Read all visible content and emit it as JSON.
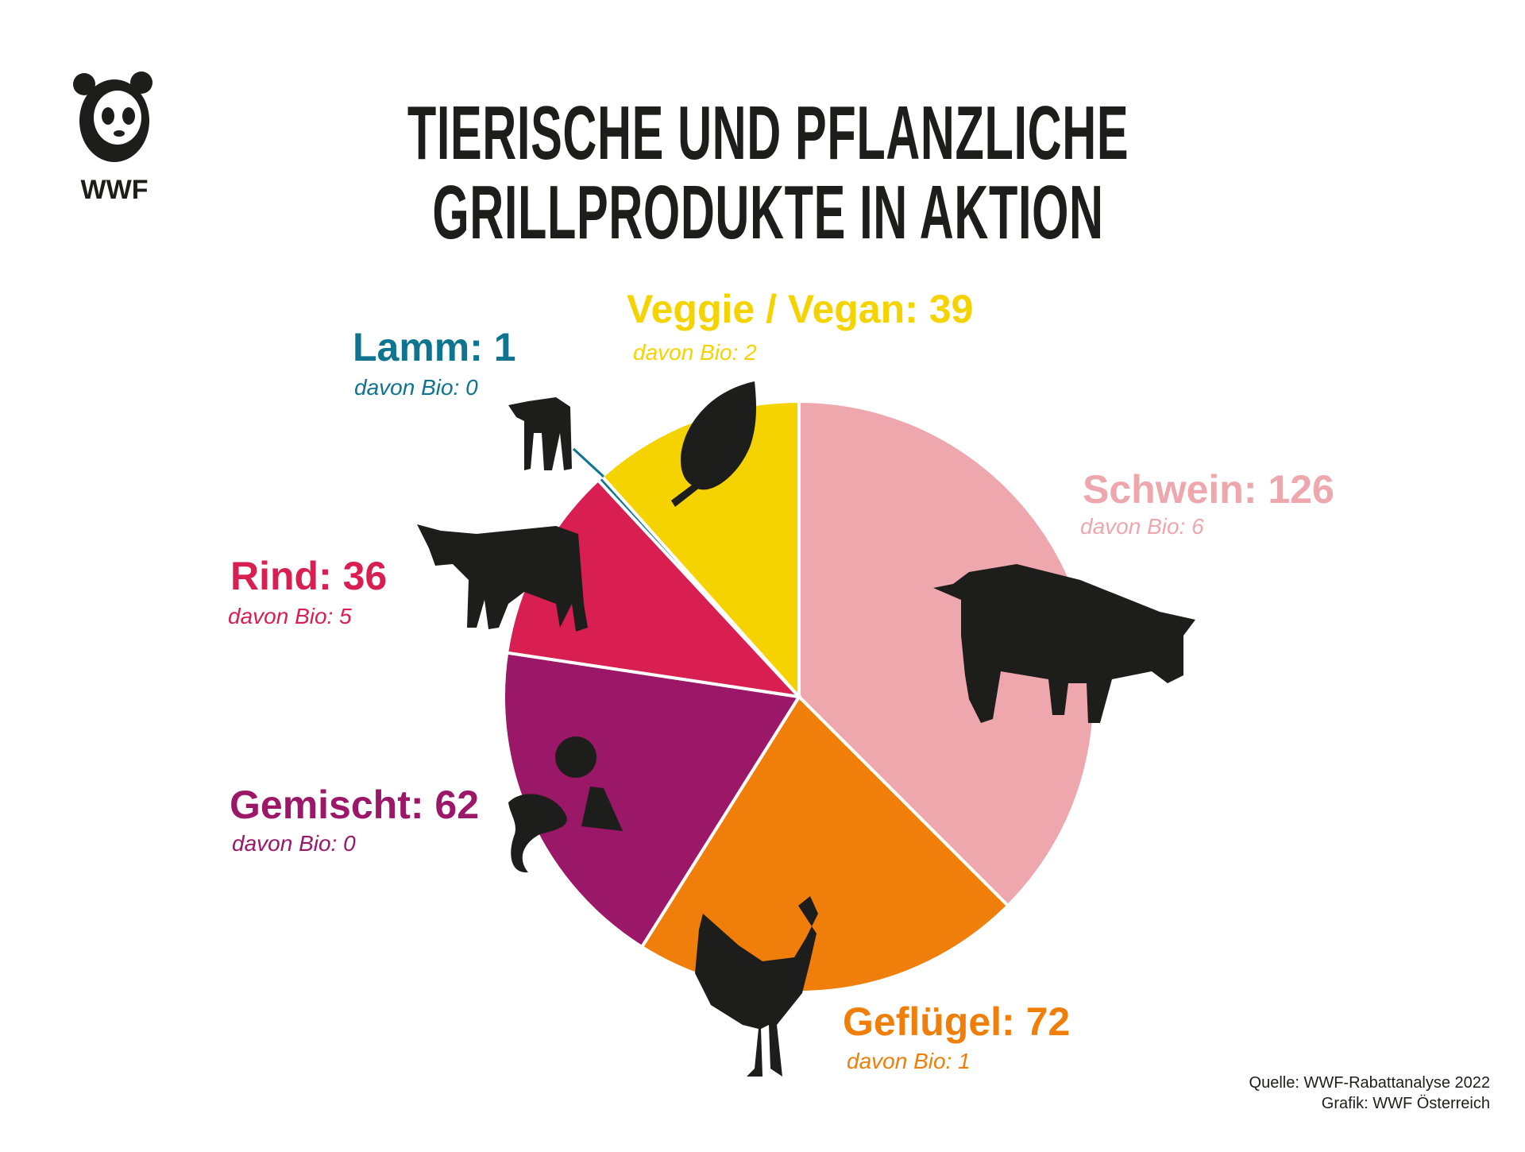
{
  "header": {
    "title_line1": "TIERISCHE UND PFLANZLICHE",
    "title_line2": "GRILLPRODUKTE IN AKTION",
    "logo_text": "WWF"
  },
  "chart_data": {
    "type": "pie",
    "title": "TIERISCHE UND PFLANZLICHE GRILLPRODUKTE IN AKTION",
    "start": "top",
    "direction": "clockwise",
    "slices": [
      {
        "name": "Schwein",
        "value": 126,
        "bio": 6,
        "label": "Schwein: 126",
        "bio_label": "davon Bio: 6",
        "color": "#EEA7AC"
      },
      {
        "name": "Geflügel",
        "value": 72,
        "bio": 1,
        "label": "Geflügel: 72",
        "bio_label": "davon Bio: 1",
        "color": "#F07E0B"
      },
      {
        "name": "Gemischt",
        "value": 62,
        "bio": 0,
        "label": "Gemischt: 62",
        "bio_label": "davon Bio: 0",
        "color": "#9B1768"
      },
      {
        "name": "Rind",
        "value": 36,
        "bio": 5,
        "label": "Rind: 36",
        "bio_label": "davon Bio: 5",
        "color": "#D91F51"
      },
      {
        "name": "Lamm",
        "value": 1,
        "bio": 0,
        "label": "Lamm: 1",
        "bio_label": "davon Bio: 0",
        "color": "#0F7490"
      },
      {
        "name": "Veggie / Vegan",
        "value": 39,
        "bio": 2,
        "label": "Veggie / Vegan: 39",
        "bio_label": "davon Bio: 2",
        "color": "#F4D300"
      }
    ]
  },
  "footer": {
    "source": "Quelle: WWF-Rabattanalyse 2022",
    "credit": "Grafik: WWF Österreich"
  }
}
